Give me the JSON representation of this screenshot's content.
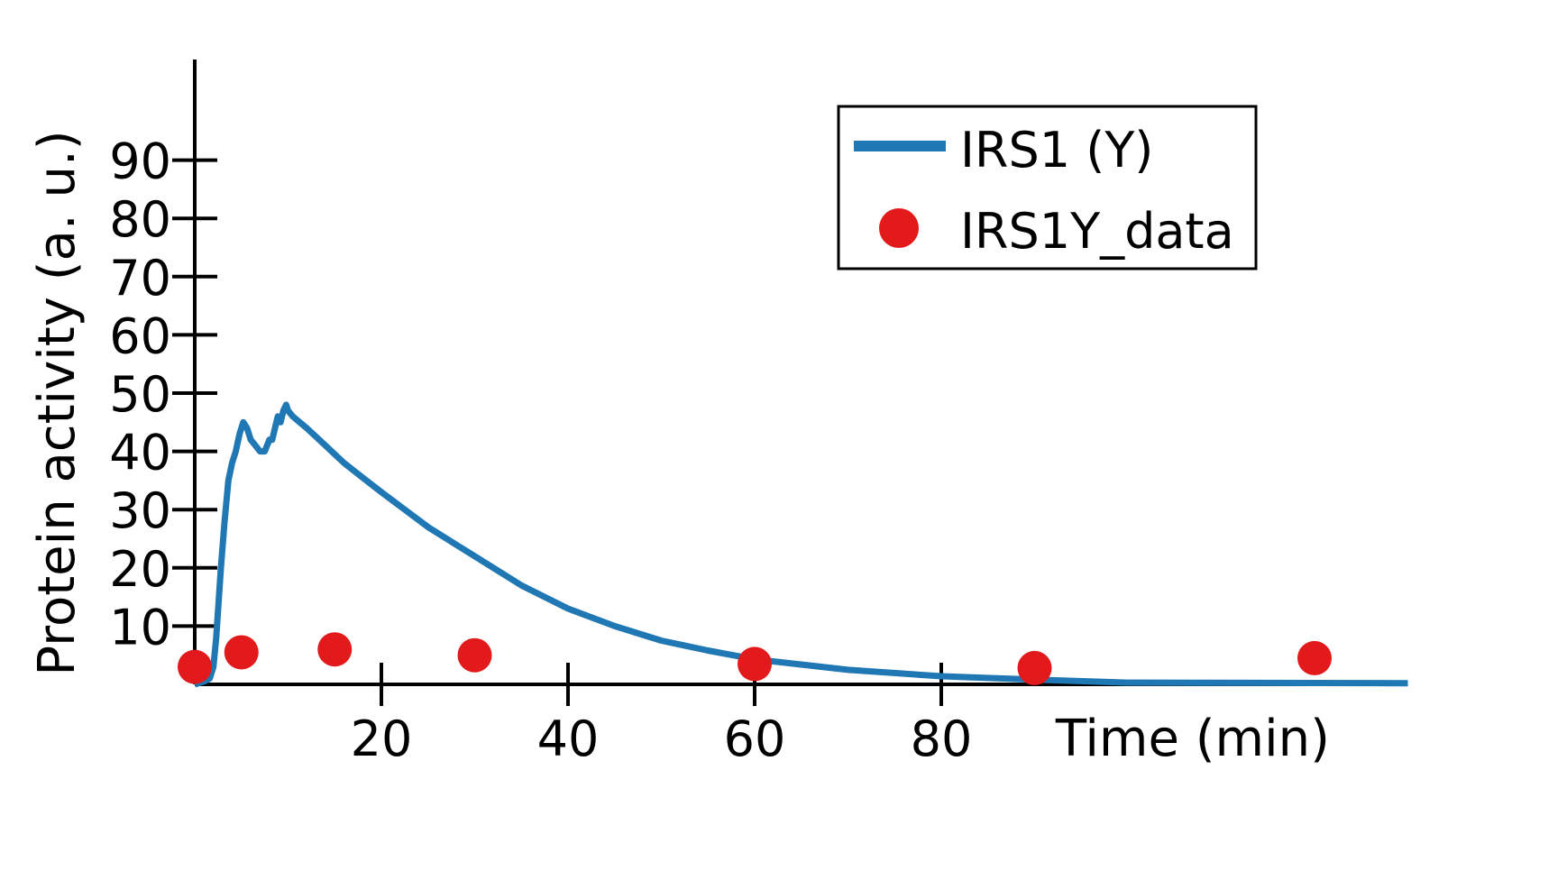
{
  "chart_data": {
    "type": "line",
    "title": "",
    "xlabel": "Time (min)",
    "ylabel": "Protein activity (a. u.)",
    "xlim": [
      0,
      130
    ],
    "ylim": [
      0,
      100
    ],
    "xticks": [
      20,
      40,
      60,
      80
    ],
    "yticks": [
      10,
      20,
      30,
      40,
      50,
      60,
      70,
      80,
      90
    ],
    "grid": false,
    "legend_position": "top-right",
    "colors": {
      "line": "#1f77b4",
      "markers": "#e31a1c",
      "axes": "#000000"
    },
    "legend": [
      {
        "name": "IRS1 (Y)",
        "marker": "line"
      },
      {
        "name": "IRS1Y_data",
        "marker": "circle"
      }
    ],
    "series": [
      {
        "name": "IRS1 (Y)",
        "kind": "line",
        "x": [
          0,
          1,
          1.6,
          2,
          2.3,
          2.8,
          3.2,
          3.6,
          4.0,
          4.4,
          4.8,
          5.2,
          5.6,
          6.0,
          6.5,
          7.0,
          7.5,
          8.0,
          8.3,
          8.6,
          8.9,
          9.2,
          9.5,
          9.8,
          10.0,
          10.5,
          12,
          14,
          16,
          18,
          20,
          22.5,
          25,
          30,
          35,
          40,
          45,
          50,
          55,
          60,
          70,
          80,
          90,
          100,
          130
        ],
        "values": [
          0,
          0.5,
          1,
          3,
          8,
          20,
          28,
          35,
          38,
          40,
          43,
          45,
          44,
          42,
          41,
          40,
          40,
          42,
          42,
          44,
          46,
          45,
          47,
          48,
          47,
          46,
          44,
          41,
          38,
          35.5,
          33,
          30,
          27,
          22,
          17,
          13,
          10,
          7.5,
          5.8,
          4.3,
          2.5,
          1.4,
          0.8,
          0.3,
          0.2
        ]
      },
      {
        "name": "IRS1Y_data",
        "kind": "scatter",
        "x": [
          0,
          5,
          15,
          30,
          60,
          90,
          120
        ],
        "values": [
          3,
          5.5,
          6,
          5,
          3.5,
          2.8,
          4.5
        ]
      }
    ]
  }
}
